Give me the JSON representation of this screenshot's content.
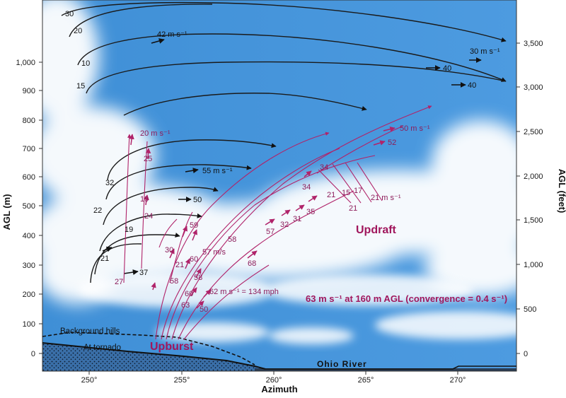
{
  "axes": {
    "x_title": "Azimuth",
    "y_left_title": "AGL (m)",
    "y_right_title": "AGL (feet)",
    "x_ticks": [
      "250°",
      "255°",
      "260°",
      "265°",
      "270°"
    ],
    "y_left_ticks": [
      "0",
      "100",
      "200",
      "300",
      "400",
      "500",
      "600",
      "700",
      "800",
      "900",
      "1,000"
    ],
    "y_right_ticks": [
      "0",
      "500",
      "1,000",
      "1,500",
      "2,000",
      "2,500",
      "3,000",
      "3,500"
    ]
  },
  "annotations": {
    "updraft": "Updraft",
    "upburst": "Upburst",
    "convergence": "63 m s⁻¹ at 160 m AGL (convergence = 0.4 s⁻¹)",
    "background_hills": "Background hills",
    "at_tornado": "At tornado",
    "ohio_river": "Ohio River",
    "mph_note": "62 m s⁻¹ = 134 mph",
    "m_s_note": "57 m/s"
  },
  "black_labels": {
    "b30": "30",
    "b20": "20",
    "b10": "10",
    "b15": "15",
    "b42": "42 m s⁻¹",
    "b30ms": "30 m s⁻¹",
    "b40a": "40",
    "b40b": "40",
    "b55": "55 m s⁻¹",
    "b50": "50",
    "b32": "32",
    "b22": "22",
    "b19": "19",
    "b21": "21",
    "b37": "37"
  },
  "magenta_labels": {
    "m20": "20 m s⁻¹",
    "m25": "25",
    "m19": "19",
    "m24": "24",
    "m27": "27",
    "m59": "59",
    "m30": "30",
    "m60": "60",
    "m21": "21",
    "m58a": "58",
    "m58b": "58",
    "m58c": "58",
    "m60b": "60",
    "m63": "63",
    "m50": "50",
    "m68": "68",
    "m57": "57",
    "m32": "32",
    "m31": "31",
    "m35": "35",
    "m34a": "34",
    "m34b": "34",
    "m21a": "21",
    "m15": "15",
    "m17": "17",
    "m21b": "21",
    "m21ms": "21 m s⁻¹",
    "m50ms": "50 m s⁻¹",
    "m52": "52"
  }
}
